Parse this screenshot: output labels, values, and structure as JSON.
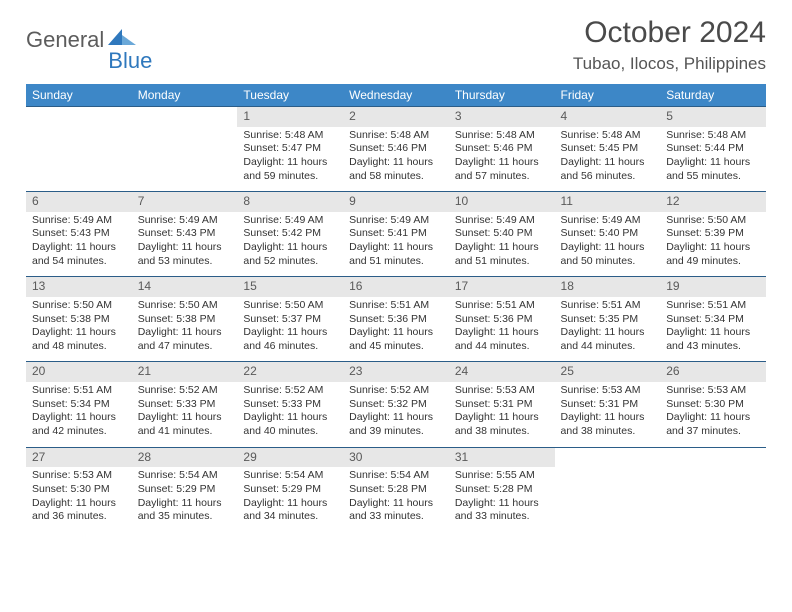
{
  "brand": {
    "part1": "General",
    "part2": "Blue"
  },
  "title": "October 2024",
  "location": "Tubao, Ilocos, Philippines",
  "colors": {
    "header_bg": "#3d87c7",
    "header_text": "#ffffff",
    "daynum_bg": "#e7e7e7",
    "row_border": "#2b5d88",
    "brand_gray": "#5c5c5c",
    "brand_blue": "#2f78bd"
  },
  "weekdays": [
    "Sunday",
    "Monday",
    "Tuesday",
    "Wednesday",
    "Thursday",
    "Friday",
    "Saturday"
  ],
  "weeks": [
    [
      {
        "n": "",
        "sr": "",
        "ss": "",
        "dl": ""
      },
      {
        "n": "",
        "sr": "",
        "ss": "",
        "dl": ""
      },
      {
        "n": "1",
        "sr": "Sunrise: 5:48 AM",
        "ss": "Sunset: 5:47 PM",
        "dl": "Daylight: 11 hours and 59 minutes."
      },
      {
        "n": "2",
        "sr": "Sunrise: 5:48 AM",
        "ss": "Sunset: 5:46 PM",
        "dl": "Daylight: 11 hours and 58 minutes."
      },
      {
        "n": "3",
        "sr": "Sunrise: 5:48 AM",
        "ss": "Sunset: 5:46 PM",
        "dl": "Daylight: 11 hours and 57 minutes."
      },
      {
        "n": "4",
        "sr": "Sunrise: 5:48 AM",
        "ss": "Sunset: 5:45 PM",
        "dl": "Daylight: 11 hours and 56 minutes."
      },
      {
        "n": "5",
        "sr": "Sunrise: 5:48 AM",
        "ss": "Sunset: 5:44 PM",
        "dl": "Daylight: 11 hours and 55 minutes."
      }
    ],
    [
      {
        "n": "6",
        "sr": "Sunrise: 5:49 AM",
        "ss": "Sunset: 5:43 PM",
        "dl": "Daylight: 11 hours and 54 minutes."
      },
      {
        "n": "7",
        "sr": "Sunrise: 5:49 AM",
        "ss": "Sunset: 5:43 PM",
        "dl": "Daylight: 11 hours and 53 minutes."
      },
      {
        "n": "8",
        "sr": "Sunrise: 5:49 AM",
        "ss": "Sunset: 5:42 PM",
        "dl": "Daylight: 11 hours and 52 minutes."
      },
      {
        "n": "9",
        "sr": "Sunrise: 5:49 AM",
        "ss": "Sunset: 5:41 PM",
        "dl": "Daylight: 11 hours and 51 minutes."
      },
      {
        "n": "10",
        "sr": "Sunrise: 5:49 AM",
        "ss": "Sunset: 5:40 PM",
        "dl": "Daylight: 11 hours and 51 minutes."
      },
      {
        "n": "11",
        "sr": "Sunrise: 5:49 AM",
        "ss": "Sunset: 5:40 PM",
        "dl": "Daylight: 11 hours and 50 minutes."
      },
      {
        "n": "12",
        "sr": "Sunrise: 5:50 AM",
        "ss": "Sunset: 5:39 PM",
        "dl": "Daylight: 11 hours and 49 minutes."
      }
    ],
    [
      {
        "n": "13",
        "sr": "Sunrise: 5:50 AM",
        "ss": "Sunset: 5:38 PM",
        "dl": "Daylight: 11 hours and 48 minutes."
      },
      {
        "n": "14",
        "sr": "Sunrise: 5:50 AM",
        "ss": "Sunset: 5:38 PM",
        "dl": "Daylight: 11 hours and 47 minutes."
      },
      {
        "n": "15",
        "sr": "Sunrise: 5:50 AM",
        "ss": "Sunset: 5:37 PM",
        "dl": "Daylight: 11 hours and 46 minutes."
      },
      {
        "n": "16",
        "sr": "Sunrise: 5:51 AM",
        "ss": "Sunset: 5:36 PM",
        "dl": "Daylight: 11 hours and 45 minutes."
      },
      {
        "n": "17",
        "sr": "Sunrise: 5:51 AM",
        "ss": "Sunset: 5:36 PM",
        "dl": "Daylight: 11 hours and 44 minutes."
      },
      {
        "n": "18",
        "sr": "Sunrise: 5:51 AM",
        "ss": "Sunset: 5:35 PM",
        "dl": "Daylight: 11 hours and 44 minutes."
      },
      {
        "n": "19",
        "sr": "Sunrise: 5:51 AM",
        "ss": "Sunset: 5:34 PM",
        "dl": "Daylight: 11 hours and 43 minutes."
      }
    ],
    [
      {
        "n": "20",
        "sr": "Sunrise: 5:51 AM",
        "ss": "Sunset: 5:34 PM",
        "dl": "Daylight: 11 hours and 42 minutes."
      },
      {
        "n": "21",
        "sr": "Sunrise: 5:52 AM",
        "ss": "Sunset: 5:33 PM",
        "dl": "Daylight: 11 hours and 41 minutes."
      },
      {
        "n": "22",
        "sr": "Sunrise: 5:52 AM",
        "ss": "Sunset: 5:33 PM",
        "dl": "Daylight: 11 hours and 40 minutes."
      },
      {
        "n": "23",
        "sr": "Sunrise: 5:52 AM",
        "ss": "Sunset: 5:32 PM",
        "dl": "Daylight: 11 hours and 39 minutes."
      },
      {
        "n": "24",
        "sr": "Sunrise: 5:53 AM",
        "ss": "Sunset: 5:31 PM",
        "dl": "Daylight: 11 hours and 38 minutes."
      },
      {
        "n": "25",
        "sr": "Sunrise: 5:53 AM",
        "ss": "Sunset: 5:31 PM",
        "dl": "Daylight: 11 hours and 38 minutes."
      },
      {
        "n": "26",
        "sr": "Sunrise: 5:53 AM",
        "ss": "Sunset: 5:30 PM",
        "dl": "Daylight: 11 hours and 37 minutes."
      }
    ],
    [
      {
        "n": "27",
        "sr": "Sunrise: 5:53 AM",
        "ss": "Sunset: 5:30 PM",
        "dl": "Daylight: 11 hours and 36 minutes."
      },
      {
        "n": "28",
        "sr": "Sunrise: 5:54 AM",
        "ss": "Sunset: 5:29 PM",
        "dl": "Daylight: 11 hours and 35 minutes."
      },
      {
        "n": "29",
        "sr": "Sunrise: 5:54 AM",
        "ss": "Sunset: 5:29 PM",
        "dl": "Daylight: 11 hours and 34 minutes."
      },
      {
        "n": "30",
        "sr": "Sunrise: 5:54 AM",
        "ss": "Sunset: 5:28 PM",
        "dl": "Daylight: 11 hours and 33 minutes."
      },
      {
        "n": "31",
        "sr": "Sunrise: 5:55 AM",
        "ss": "Sunset: 5:28 PM",
        "dl": "Daylight: 11 hours and 33 minutes."
      },
      {
        "n": "",
        "sr": "",
        "ss": "",
        "dl": ""
      },
      {
        "n": "",
        "sr": "",
        "ss": "",
        "dl": ""
      }
    ]
  ]
}
